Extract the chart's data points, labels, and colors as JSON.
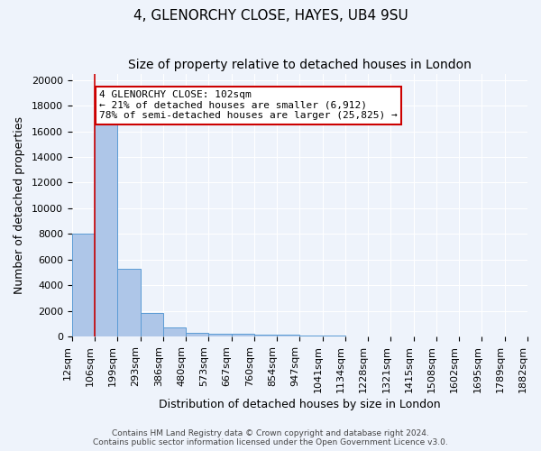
{
  "title1": "4, GLENORCHY CLOSE, HAYES, UB4 9SU",
  "title2": "Size of property relative to detached houses in London",
  "xlabel": "Distribution of detached houses by size in London",
  "ylabel": "Number of detached properties",
  "bin_labels": [
    "12sqm",
    "106sqm",
    "199sqm",
    "293sqm",
    "386sqm",
    "480sqm",
    "573sqm",
    "667sqm",
    "760sqm",
    "854sqm",
    "947sqm",
    "1041sqm",
    "1134sqm",
    "1228sqm",
    "1321sqm",
    "1415sqm",
    "1508sqm",
    "1602sqm",
    "1695sqm",
    "1789sqm",
    "1882sqm"
  ],
  "bar_heights": [
    8000,
    16500,
    5300,
    1850,
    700,
    310,
    220,
    205,
    160,
    155,
    100,
    60,
    40,
    30,
    20,
    15,
    10,
    8,
    5,
    3
  ],
  "bar_color": "#aec6e8",
  "bar_edge_color": "#5b9bd5",
  "background_color": "#eef3fb",
  "grid_color": "#ffffff",
  "red_line_x": 1,
  "annotation_text": "4 GLENORCHY CLOSE: 102sqm\n← 21% of detached houses are smaller (6,912)\n78% of semi-detached houses are larger (25,825) →",
  "annotation_box_color": "#cc0000",
  "ylim": [
    0,
    20500
  ],
  "yticks": [
    0,
    2000,
    4000,
    6000,
    8000,
    10000,
    12000,
    14000,
    16000,
    18000,
    20000
  ],
  "footnote": "Contains HM Land Registry data © Crown copyright and database right 2024.\nContains public sector information licensed under the Open Government Licence v3.0.",
  "title1_fontsize": 11,
  "title2_fontsize": 10,
  "xlabel_fontsize": 9,
  "ylabel_fontsize": 9,
  "tick_fontsize": 8,
  "annot_fontsize": 8
}
